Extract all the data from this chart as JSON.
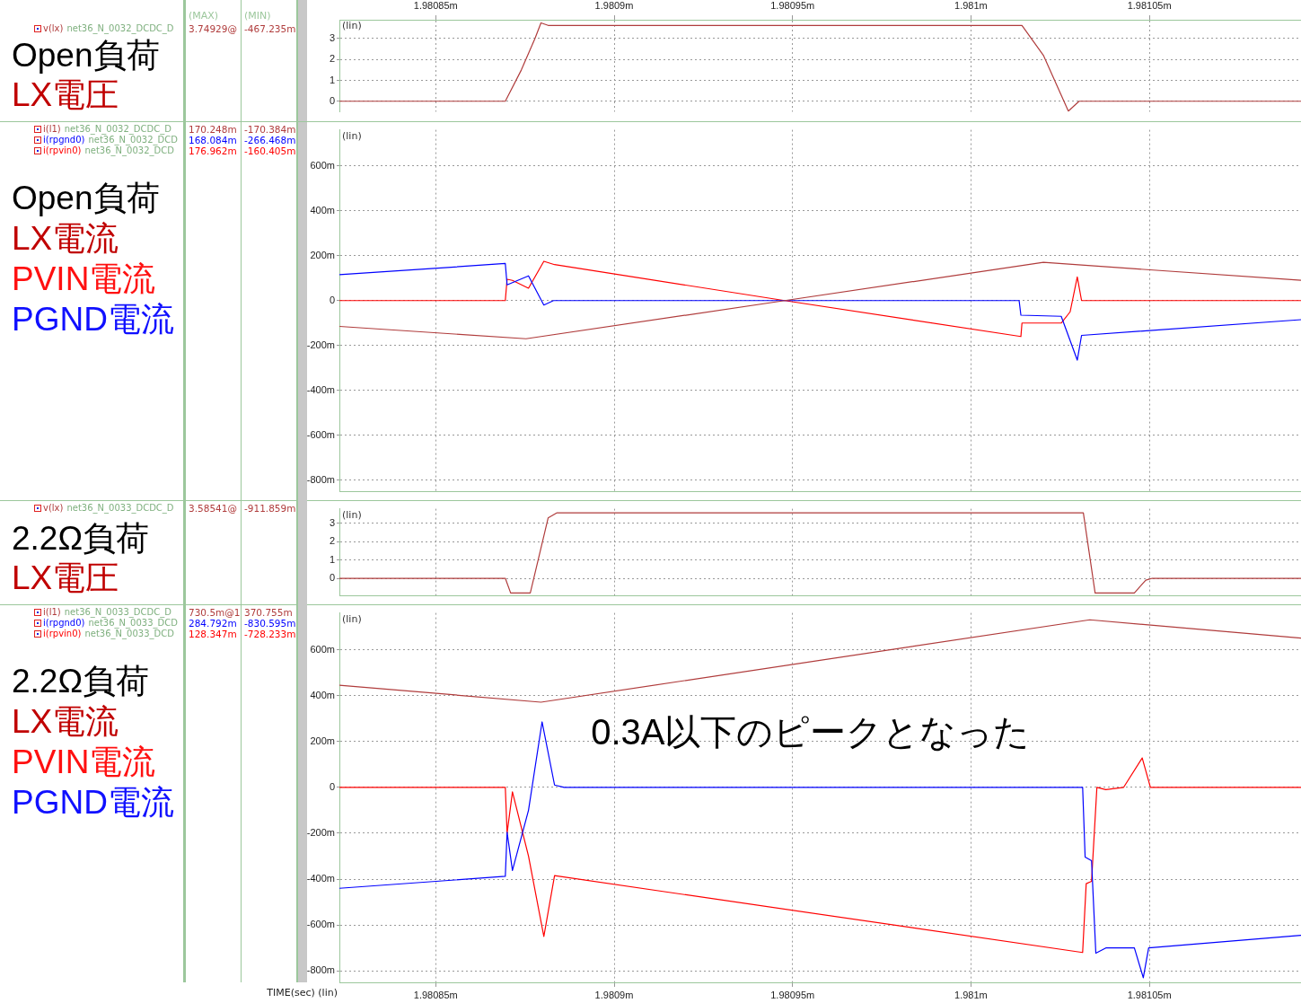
{
  "chart_data": [
    {
      "type": "line",
      "title": "Open負荷",
      "ylabel": "(lin)",
      "legend_title": "(MAX) (MIN)",
      "legend": "left",
      "grid": true,
      "marker": "none",
      "line_style": "solid",
      "annotations": [
        "net36_N_0032_DCDC_D",
        "3.74929@",
        "-467.235m",
        "LX電圧"
      ],
      "xlim": [
        1.980823,
        1.9810925
      ],
      "xticks": [
        {
          "value": 1.98085,
          "label": "1.98085m"
        },
        {
          "value": 1.9809,
          "label": "1.9809m"
        },
        {
          "value": 1.98095,
          "label": "1.98095m"
        },
        {
          "value": 1.981,
          "label": "1.981m"
        },
        {
          "value": 1.98105,
          "label": "1.98105m"
        }
      ],
      "ylim": [
        -0.5,
        3.9
      ],
      "yticks": [
        0,
        1,
        2,
        3
      ],
      "series": [
        {
          "name": "v(lx)",
          "color": "#b03c3c",
          "x": [
            1.980823,
            1.9808695,
            1.980874,
            1.9808778,
            1.9808795,
            1.9808815,
            1.9810143,
            1.9810203,
            1.9810273,
            1.9810303,
            1.9810925
          ],
          "values": [
            0,
            0,
            1.5,
            3.0,
            3.75,
            3.63,
            3.63,
            2.2,
            -0.47,
            0,
            0
          ]
        }
      ]
    },
    {
      "type": "line",
      "title": "Open負荷",
      "ylabel": "(lin)",
      "legend": "left",
      "grid": true,
      "marker": "none",
      "line_style": "solid",
      "tick_labels": "y",
      "annotations": [
        "net36_N_0032_DCDC_D",
        "170.248m",
        "-170.384m",
        "net36_N_0032_DCD",
        "168.084m",
        "-266.468m",
        "net36_N_0032_DCD",
        "176.962m",
        "-160.405m",
        "LX電流",
        "PVIN電流",
        "PGND電流"
      ],
      "xlim": [
        1.980823,
        1.9810925
      ],
      "xticks": [
        {
          "value": 1.98085,
          "label": null
        },
        {
          "value": 1.9809,
          "label": null
        },
        {
          "value": 1.98095,
          "label": null
        },
        {
          "value": 1.981,
          "label": null
        },
        {
          "value": 1.98105,
          "label": null
        }
      ],
      "ylim": [
        -850,
        760
      ],
      "yticks": [
        {
          "value": 600,
          "label": "600m"
        },
        {
          "value": 400,
          "label": "400m"
        },
        {
          "value": 200,
          "label": "200m"
        },
        0,
        {
          "value": -200,
          "label": "-200m"
        },
        {
          "value": -400,
          "label": "-400m"
        },
        {
          "value": -600,
          "label": "-600m"
        },
        {
          "value": -800,
          "label": "-800m"
        }
      ],
      "series": [
        {
          "name": "i(l1)",
          "color": "#b03c3c",
          "x": [
            1.980823,
            1.9808753,
            1.9809478,
            1.9810203,
            1.9810925
          ],
          "values": [
            -115,
            -170,
            0,
            170,
            90
          ]
        },
        {
          "name": "i(rpgnd0)",
          "color": "#0000ff",
          "x": [
            1.980823,
            1.9808695,
            1.98087,
            1.9808715,
            1.980876,
            1.9808803,
            1.980883,
            1.9810135,
            1.981014,
            1.9810253,
            1.9810298,
            1.981031,
            1.9810925
          ],
          "values": [
            115,
            165,
            70,
            80,
            110,
            -20,
            0,
            0,
            -65,
            -70,
            -265,
            -155,
            -85
          ]
        },
        {
          "name": "i(rpvin0)",
          "color": "#ff0000",
          "x": [
            1.980823,
            1.9808695,
            1.98087,
            1.9808715,
            1.980876,
            1.9808803,
            1.9808833,
            1.9809478,
            1.981014,
            1.9810143,
            1.9810253,
            1.9810278,
            1.9810298,
            1.981031,
            1.9810925
          ],
          "values": [
            0,
            0,
            95,
            90,
            55,
            175,
            160,
            0,
            -160,
            -100,
            -100,
            -50,
            105,
            0,
            0
          ]
        }
      ]
    },
    {
      "type": "line",
      "title": "2.2Ω負荷",
      "ylabel": "(lin)",
      "legend": "left",
      "grid": true,
      "marker": "none",
      "line_style": "solid",
      "tick_labels": "y",
      "annotations": [
        "net36_N_0033_DCDC_D",
        "3.58541@",
        "-911.859m",
        "LX電圧"
      ],
      "xlim": [
        1.980823,
        1.9810925
      ],
      "xticks": [
        {
          "value": 1.98085,
          "label": null
        },
        {
          "value": 1.9809,
          "label": null
        },
        {
          "value": 1.98095,
          "label": null
        },
        {
          "value": 1.981,
          "label": null
        },
        {
          "value": 1.98105,
          "label": null
        }
      ],
      "ylim": [
        -0.95,
        3.8
      ],
      "yticks": [
        0,
        1,
        2,
        3
      ],
      "series": [
        {
          "name": "v(lx)",
          "color": "#b03c3c",
          "x": [
            1.980823,
            1.9808695,
            1.980871,
            1.9808765,
            1.9808815,
            1.980884,
            1.9810315,
            1.9810348,
            1.9810458,
            1.981049,
            1.9810508,
            1.9810925
          ],
          "values": [
            0,
            0,
            -0.8,
            -0.8,
            3.3,
            3.58,
            3.58,
            -0.8,
            -0.8,
            -0.1,
            0,
            0
          ]
        }
      ]
    },
    {
      "type": "line",
      "title": "2.2Ω負荷",
      "ylabel": "(lin)",
      "xlabel": "TIME(sec) (lin)",
      "legend": "left",
      "grid": true,
      "marker": "none",
      "line_style": "solid",
      "subtitle": "0.3A以下のピークとなった",
      "annotations": [
        "net36_N_0033_DCDC_D",
        "730.5m@1",
        "370.755m",
        "net36_N_0033_DCD",
        "284.792m",
        "-830.595m",
        "net36_N_0033_DCD",
        "128.347m",
        "-728.233m",
        "LX電流",
        "PVIN電流",
        "PGND電流"
      ],
      "xlim": [
        1.980823,
        1.9810925
      ],
      "xticks": [
        {
          "value": 1.98085,
          "label": "1.98085m"
        },
        {
          "value": 1.9809,
          "label": "1.9809m"
        },
        {
          "value": 1.98095,
          "label": "1.98095m"
        },
        {
          "value": 1.981,
          "label": "1.981m"
        },
        {
          "value": 1.98105,
          "label": "1.98105m"
        }
      ],
      "ylim": [
        -850,
        760
      ],
      "yticks": [
        {
          "value": 600,
          "label": "600m"
        },
        {
          "value": 400,
          "label": "400m"
        },
        {
          "value": 200,
          "label": "200m"
        },
        0,
        {
          "value": -200,
          "label": "-200m"
        },
        {
          "value": -400,
          "label": "-400m"
        },
        {
          "value": -600,
          "label": "-600m"
        },
        {
          "value": -800,
          "label": "-800m"
        }
      ],
      "series": [
        {
          "name": "i(l1)",
          "color": "#b03c3c",
          "x": [
            1.980823,
            1.9808795,
            1.9810333,
            1.9810925
          ],
          "values": [
            445,
            371,
            730,
            650
          ]
        },
        {
          "name": "i(rpgnd0)",
          "color": "#0000ff",
          "x": [
            1.980823,
            1.9808695,
            1.98087,
            1.9808715,
            1.980876,
            1.9808798,
            1.9808833,
            1.980886,
            1.9810313,
            1.981032,
            1.9810338,
            1.981035,
            1.9810378,
            1.9810458,
            1.9810483,
            1.9810498,
            1.9810925
          ],
          "values": [
            -440,
            -388,
            -196,
            -362,
            -100,
            285,
            10,
            0,
            0,
            -304,
            -320,
            -723,
            -700,
            -700,
            -830,
            -700,
            -645
          ]
        },
        {
          "name": "i(rpvin0)",
          "color": "#ff0000",
          "x": [
            1.980823,
            1.9808695,
            1.98087,
            1.9808715,
            1.980876,
            1.9808803,
            1.9808833,
            1.9810313,
            1.9810323,
            1.9810338,
            1.9810353,
            1.9810378,
            1.9810428,
            1.981048,
            1.9810503,
            1.9810925
          ],
          "values": [
            0,
            0,
            -200,
            -20,
            -300,
            -650,
            -385,
            -720,
            -420,
            -410,
            0,
            -10,
            0,
            128,
            0,
            0
          ]
        }
      ]
    }
  ]
}
